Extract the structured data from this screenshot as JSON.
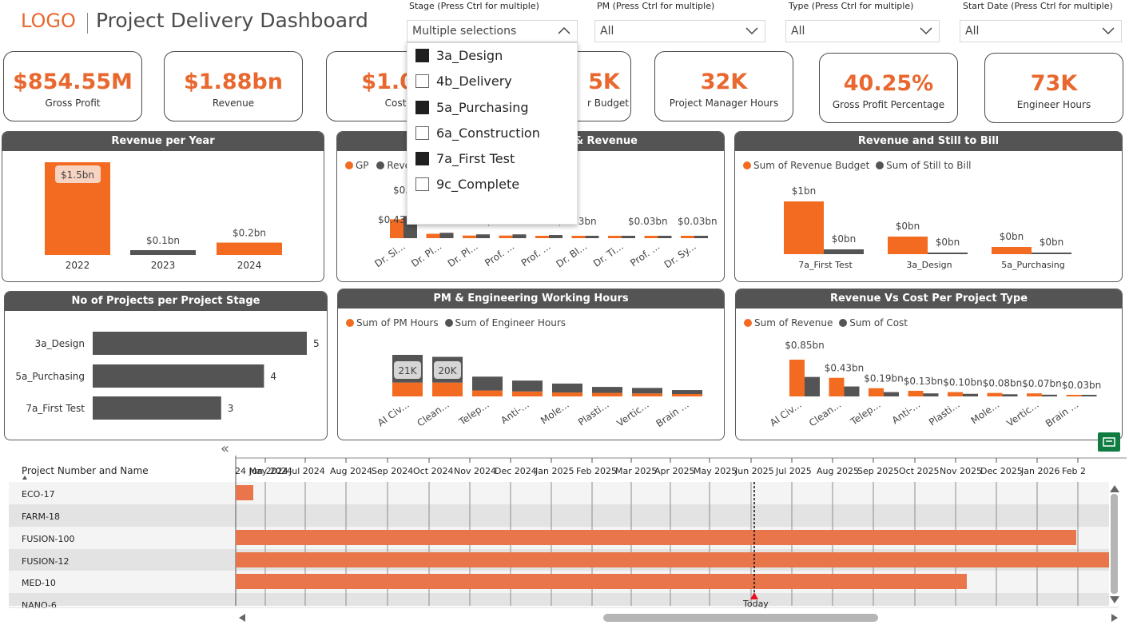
{
  "header": {
    "logo": "LOGO",
    "title": "Project Delivery Dashboard"
  },
  "slicers": [
    {
      "label": "Stage (Press Ctrl for multiple)",
      "value": "Multiple selections",
      "open": true
    },
    {
      "label": "PM (Press Ctrl for multiple)",
      "value": "All"
    },
    {
      "label": "Type (Press Ctrl for multiple)",
      "value": "All"
    },
    {
      "label": "Start Date (Press Ctrl for multiple)",
      "value": "All"
    }
  ],
  "stage_options": [
    {
      "label": "3a_Design",
      "checked": true
    },
    {
      "label": "4b_Delivery",
      "checked": false
    },
    {
      "label": "5a_Purchasing",
      "checked": true
    },
    {
      "label": "6a_Construction",
      "checked": false
    },
    {
      "label": "7a_First Test",
      "checked": true
    },
    {
      "label": "9c_Complete",
      "checked": false
    }
  ],
  "kpis": [
    {
      "value": "$854.55M",
      "label": "Gross Profit"
    },
    {
      "value": "$1.88bn",
      "label": "Revenue"
    },
    {
      "value": "$1.02",
      "label": "Cost"
    },
    {
      "value": "5K",
      "label": "r Budget"
    },
    {
      "value": "32K",
      "label": "Project Manager Hours"
    },
    {
      "value": "40.25%",
      "label": "Gross Profit Percentage"
    },
    {
      "value": "73K",
      "label": "Engineer Hours"
    }
  ],
  "colors": {
    "accent": "#f26b21",
    "dark": "#545454",
    "gantt_bar": "#e8764a",
    "today": "#e81123"
  },
  "charts": {
    "revenue_per_year": {
      "title": "Revenue per Year"
    },
    "gp_revenue": {
      "title": "& Revenue",
      "legend": [
        "GP",
        "Reve"
      ]
    },
    "still_to_bill": {
      "title": "Revenue and Still to Bill",
      "legend": [
        "Sum of Revenue Budget",
        "Sum of Still to Bill"
      ]
    },
    "projects_per_stage": {
      "title": "No of Projects per Project Stage"
    },
    "working_hours": {
      "title": "PM & Engineering Working Hours",
      "legend": [
        "Sum of PM Hours",
        "Sum of Engineer Hours"
      ]
    },
    "rev_vs_cost": {
      "title": "Revenue Vs Cost Per Project Type",
      "legend": [
        "Sum of Revenue",
        "Sum of Cost"
      ]
    }
  },
  "chart_data": [
    {
      "type": "bar",
      "title": "Revenue per Year",
      "categories": [
        "2022",
        "2023",
        "2024"
      ],
      "values": [
        1.5,
        0.1,
        0.2
      ],
      "data_labels": [
        "$1.5bn",
        "$0.1bn",
        "$0.2bn"
      ],
      "color": "mixed"
    },
    {
      "type": "bar",
      "title": "& Revenue",
      "categories": [
        "Dr. Si...",
        "Dr. Pl...",
        "Dr. Pl...",
        "Prof. ...",
        "Prof. ...",
        "Dr. Bl...",
        "Dr. Ti...",
        "Prof. ...",
        "Dr. Sy..."
      ],
      "series": [
        {
          "name": "GP",
          "values": [
            0.43,
            0.1,
            0.06,
            0.06,
            0.05,
            0.03,
            0.02,
            0.02,
            0.02
          ]
        },
        {
          "name": "Reve",
          "values": [
            0.7,
            0.17,
            0.12,
            0.12,
            0.1,
            0.07,
            0.05,
            0.04,
            0.03
          ]
        }
      ],
      "data_labels": [
        "$0.4",
        "$0.43",
        "$0.07bn",
        "$0.03bn",
        "$0.03bn",
        "$0.03bn"
      ]
    },
    {
      "type": "bar",
      "title": "Revenue and Still to Bill",
      "categories": [
        "7a_First Test",
        "3a_Design",
        "5a_Purchasing"
      ],
      "series": [
        {
          "name": "Sum of Revenue Budget",
          "values": [
            1,
            0.3,
            0.14
          ]
        },
        {
          "name": "Sum of Still to Bill",
          "values": [
            0.08,
            0.02,
            0.01
          ]
        }
      ],
      "data_labels": [
        "$1bn",
        "$0bn",
        "$0bn",
        "$0bn",
        "$0bn",
        "$0bn"
      ]
    },
    {
      "type": "bar",
      "title": "No of Projects per Project Stage",
      "orientation": "horizontal",
      "categories": [
        "3a_Design",
        "5a_Purchasing",
        "7a_First Test"
      ],
      "values": [
        5,
        4,
        3
      ]
    },
    {
      "type": "bar",
      "title": "PM & Engineering Working Hours",
      "stacked": true,
      "categories": [
        "AI Civ...",
        "Clean...",
        "Telep...",
        "Anti-...",
        "Mole...",
        "Plasti...",
        "Vertic...",
        "Brain ..."
      ],
      "series": [
        {
          "name": "Sum of PM Hours",
          "values": [
            7000,
            7000,
            3000,
            2500,
            2000,
            1800,
            1500,
            1200
          ]
        },
        {
          "name": "Sum of Engineer Hours",
          "values": [
            14000,
            13000,
            7000,
            5500,
            4500,
            3000,
            2800,
            2000
          ]
        }
      ],
      "data_labels": [
        "21K",
        "20K"
      ]
    },
    {
      "type": "bar",
      "title": "Revenue Vs Cost Per Project Type",
      "categories": [
        "AI Civ...",
        "Clean...",
        "Telep...",
        "Anti-...",
        "Plasti...",
        "Mole...",
        "Vertic...",
        "Brain ..."
      ],
      "series": [
        {
          "name": "Sum of Revenue",
          "values": [
            0.85,
            0.43,
            0.19,
            0.13,
            0.1,
            0.08,
            0.07,
            0.03
          ]
        },
        {
          "name": "Sum of Cost",
          "values": [
            0.45,
            0.23,
            0.1,
            0.07,
            0.06,
            0.05,
            0.04,
            0.02
          ]
        }
      ],
      "data_labels": [
        "$0.85bn",
        "$0.43bn",
        "$0.19bn",
        "$0.13bn",
        "$0.10bn",
        "$0.08bn",
        "$0.07bn",
        "$0.03bn"
      ]
    }
  ],
  "gantt": {
    "column_header": "Project Number and Name",
    "collapse_glyph": "«",
    "months": [
      "24 May 2024",
      "Jun 2024",
      "Jul 2024",
      "Aug 2024",
      "Sep 2024",
      "Oct 2024",
      "Nov 2024",
      "Dec 2024",
      "Jan 2025",
      "Feb 2025",
      "Mar 2025",
      "Apr 2025",
      "May 2025",
      "Jun 2025",
      "Jul 2025",
      "Aug 2025",
      "Sep 2025",
      "Oct 2025",
      "Nov 2025",
      "Dec 2025",
      "Jan 2026",
      "Feb 2"
    ],
    "today_label": "Today",
    "rows": [
      {
        "name": "ECO-17",
        "start": "2024-05-01",
        "end": "2024-05-10"
      },
      {
        "name": "FARM-18"
      },
      {
        "name": "FUSION-100",
        "start": "2024-05-01",
        "end": "2026-01-02"
      },
      {
        "name": "FUSION-12",
        "start": "2024-05-01",
        "end": "2026-02-15"
      },
      {
        "name": "MED-10",
        "start": "2024-05-01",
        "end": "2025-11-30"
      },
      {
        "name": "NANO-6"
      }
    ]
  }
}
